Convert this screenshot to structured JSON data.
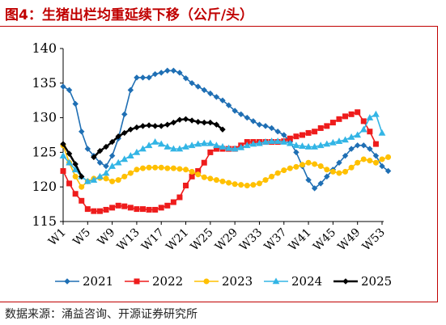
{
  "title": "图4：生猪出栏均重延续下移（公斤/头）",
  "source": "数据来源：涌益咨询、开源证券研究所",
  "chart_data": {
    "type": "line",
    "xlabel": "",
    "ylabel": "",
    "ylim": [
      115,
      140
    ],
    "yticks": [
      115,
      120,
      125,
      130,
      135,
      140
    ],
    "xticks": [
      "W1",
      "W5",
      "W9",
      "W13",
      "W17",
      "W21",
      "W25",
      "W29",
      "W33",
      "W37",
      "W41",
      "W45",
      "W49",
      "W53"
    ],
    "legend_position": "bottom",
    "series": [
      {
        "name": "2021",
        "color": "#1f6fb4",
        "marker": "diamond",
        "values": [
          134.5,
          134,
          132,
          128,
          125.5,
          124.5,
          123.5,
          123,
          124.5,
          127,
          130.5,
          134,
          135.8,
          135.8,
          135.8,
          136.3,
          136.5,
          136.8,
          136.8,
          136.5,
          135.7,
          135,
          134.5,
          134,
          133.5,
          133,
          132.5,
          131.8,
          131,
          130.5,
          130,
          129.5,
          129,
          128.8,
          128.5,
          128,
          127.5,
          126.5,
          125,
          123,
          121,
          119.8,
          120.5,
          121.5,
          122.5,
          123.5,
          124.5,
          125.5,
          126,
          126,
          125.5,
          124.5,
          123,
          122.3
        ]
      },
      {
        "name": "2022",
        "color": "#ee1c1c",
        "marker": "square",
        "values": [
          122.3,
          120.5,
          119,
          118,
          116.8,
          116.5,
          116.5,
          116.7,
          117,
          117.3,
          117.2,
          117,
          116.8,
          116.8,
          116.7,
          116.7,
          117,
          117.3,
          117.8,
          118.5,
          120.2,
          121.5,
          122.3,
          123.5,
          125,
          125.5,
          125.5,
          125.5,
          125.5,
          126,
          126.5,
          126.5,
          126.5,
          126.5,
          126.5,
          126.5,
          126.6,
          127,
          127.3,
          127.5,
          127.8,
          128,
          128.5,
          128.8,
          129.3,
          129.8,
          130.2,
          130.5,
          130.8,
          129.5,
          128,
          126.2
        ]
      },
      {
        "name": "2023",
        "color": "#ffc000",
        "marker": "circle",
        "values": [
          126,
          123.5,
          121.5,
          120,
          120.8,
          121.2,
          121.3,
          121.2,
          120.8,
          121,
          121.5,
          122,
          122.5,
          122.7,
          122.8,
          122.8,
          122.8,
          122.7,
          122.7,
          122.6,
          122.5,
          122.2,
          121.8,
          121.4,
          121.2,
          121,
          120.8,
          120.6,
          120.4,
          120.3,
          120.2,
          120.3,
          120.5,
          121,
          121.5,
          122,
          122.4,
          122.7,
          122.9,
          123.2,
          123.5,
          123.3,
          123,
          122.5,
          122.2,
          122,
          122.2,
          122.8,
          123.5,
          124,
          123.8,
          123.5,
          124,
          124.3
        ]
      },
      {
        "name": "2024",
        "color": "#33b5e5",
        "marker": "triangle",
        "values": [
          124.5,
          123.5,
          122.5,
          121.5,
          120.8,
          121,
          121.5,
          122,
          123,
          123.5,
          124,
          124.5,
          125,
          125.5,
          126,
          126.5,
          126.2,
          125.8,
          125.5,
          125.5,
          125.8,
          126,
          126.2,
          126.3,
          126.3,
          126,
          125.8,
          125.6,
          125.5,
          125.7,
          126,
          126.2,
          126.3,
          126.5,
          126.6,
          126.6,
          126.5,
          126.3,
          126,
          125.9,
          125.8,
          125.8,
          126,
          126.2,
          126.4,
          126.6,
          126.8,
          127.2,
          127.5,
          128.3,
          130,
          130.5,
          127.8
        ]
      },
      {
        "name": "2025",
        "color": "#000000",
        "marker": "diamond",
        "segments": [
          {
            "start": 1,
            "values": [
              126.2,
              124.8,
              123.3,
              121.5
            ]
          },
          {
            "start": 6,
            "values": [
              124.3,
              125.2,
              125.8,
              126.5,
              127.3,
              127.8,
              128.3,
              128.6,
              128.8,
              128.9,
              128.8,
              128.8,
              129,
              129.3,
              129.7,
              129.8,
              129.6,
              129.4,
              129.3,
              129.3,
              129,
              128.3
            ]
          }
        ]
      }
    ]
  }
}
